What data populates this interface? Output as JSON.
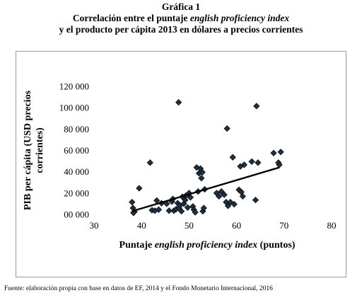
{
  "figure": {
    "label": "Gráfica 1",
    "title_line1_pre": "Correlación entre el puntaje ",
    "title_line1_italic": "english proficiency index",
    "title_line2": "y el producto per cápita 2013 en dólares a precios corrientes",
    "source": "Fuente: elaboración propia con base en datos de EF, 2014 y el Fondo Monetario Internacional, 2016"
  },
  "chart_data": {
    "type": "scatter",
    "title": "",
    "xlabel_pre": "Puntaje ",
    "xlabel_italic": "english proficiency index",
    "xlabel_post": " (puntos)",
    "ylabel_line1": "PIB per cápita (USD precios",
    "ylabel_line2": "corrientes)",
    "xlim": [
      30,
      80
    ],
    "ylim": [
      0,
      120000
    ],
    "x_ticks": [
      30,
      40,
      50,
      60,
      70,
      80
    ],
    "y_ticks": [
      0,
      20000,
      40000,
      60000,
      80000,
      100000,
      120000
    ],
    "y_tick_labels": [
      "00 000",
      "20 000",
      "40 000",
      "60 000",
      "80 000",
      "100 000",
      "120 000"
    ],
    "x_tick_labels": [
      "30",
      "40",
      "50",
      "60",
      "70",
      "80"
    ],
    "grid": false,
    "marker_color": "#1f2f3f",
    "trendline": {
      "color": "#000000",
      "x": [
        38,
        69
      ],
      "y": [
        3000,
        44000
      ]
    },
    "points": [
      [
        38.0,
        11500
      ],
      [
        38.2,
        6000
      ],
      [
        38.5,
        2500
      ],
      [
        38.3,
        1500
      ],
      [
        39.5,
        24500
      ],
      [
        41.8,
        48500
      ],
      [
        42.2,
        4000
      ],
      [
        42.8,
        3500
      ],
      [
        43.2,
        13000
      ],
      [
        43.6,
        4500
      ],
      [
        44.2,
        10500
      ],
      [
        45.3,
        10000
      ],
      [
        45.8,
        3500
      ],
      [
        46.4,
        12000
      ],
      [
        46.6,
        14500
      ],
      [
        46.8,
        3500
      ],
      [
        47.3,
        5000
      ],
      [
        47.6,
        10500
      ],
      [
        47.9,
        6000
      ],
      [
        48.1,
        8500
      ],
      [
        48.4,
        3000
      ],
      [
        48.6,
        16500
      ],
      [
        48.9,
        10000
      ],
      [
        49.2,
        13500
      ],
      [
        49.3,
        17500
      ],
      [
        49.7,
        6500
      ],
      [
        50.0,
        20000
      ],
      [
        50.3,
        16000
      ],
      [
        50.8,
        7500
      ],
      [
        51.0,
        4500
      ],
      [
        51.3,
        2000
      ],
      [
        51.6,
        44000
      ],
      [
        51.9,
        21500
      ],
      [
        52.1,
        38500
      ],
      [
        52.4,
        43000
      ],
      [
        52.6,
        34000
      ],
      [
        52.8,
        39500
      ],
      [
        52.9,
        3000
      ],
      [
        53.1,
        6000
      ],
      [
        53.3,
        23500
      ],
      [
        47.8,
        105000
      ],
      [
        55.8,
        20000
      ],
      [
        56.3,
        17000
      ],
      [
        56.8,
        21500
      ],
      [
        57.4,
        18500
      ],
      [
        57.8,
        11500
      ],
      [
        58.2,
        8000
      ],
      [
        58.0,
        80500
      ],
      [
        58.7,
        11500
      ],
      [
        59.2,
        53500
      ],
      [
        59.5,
        9500
      ],
      [
        60.5,
        23000
      ],
      [
        60.8,
        45000
      ],
      [
        61.0,
        21000
      ],
      [
        61.3,
        17000
      ],
      [
        61.6,
        46500
      ],
      [
        63.2,
        49500
      ],
      [
        64.0,
        13500
      ],
      [
        64.2,
        101500
      ],
      [
        64.5,
        48500
      ],
      [
        67.8,
        57500
      ],
      [
        68.8,
        48500
      ],
      [
        69.0,
        46500
      ],
      [
        69.3,
        58500
      ]
    ]
  }
}
